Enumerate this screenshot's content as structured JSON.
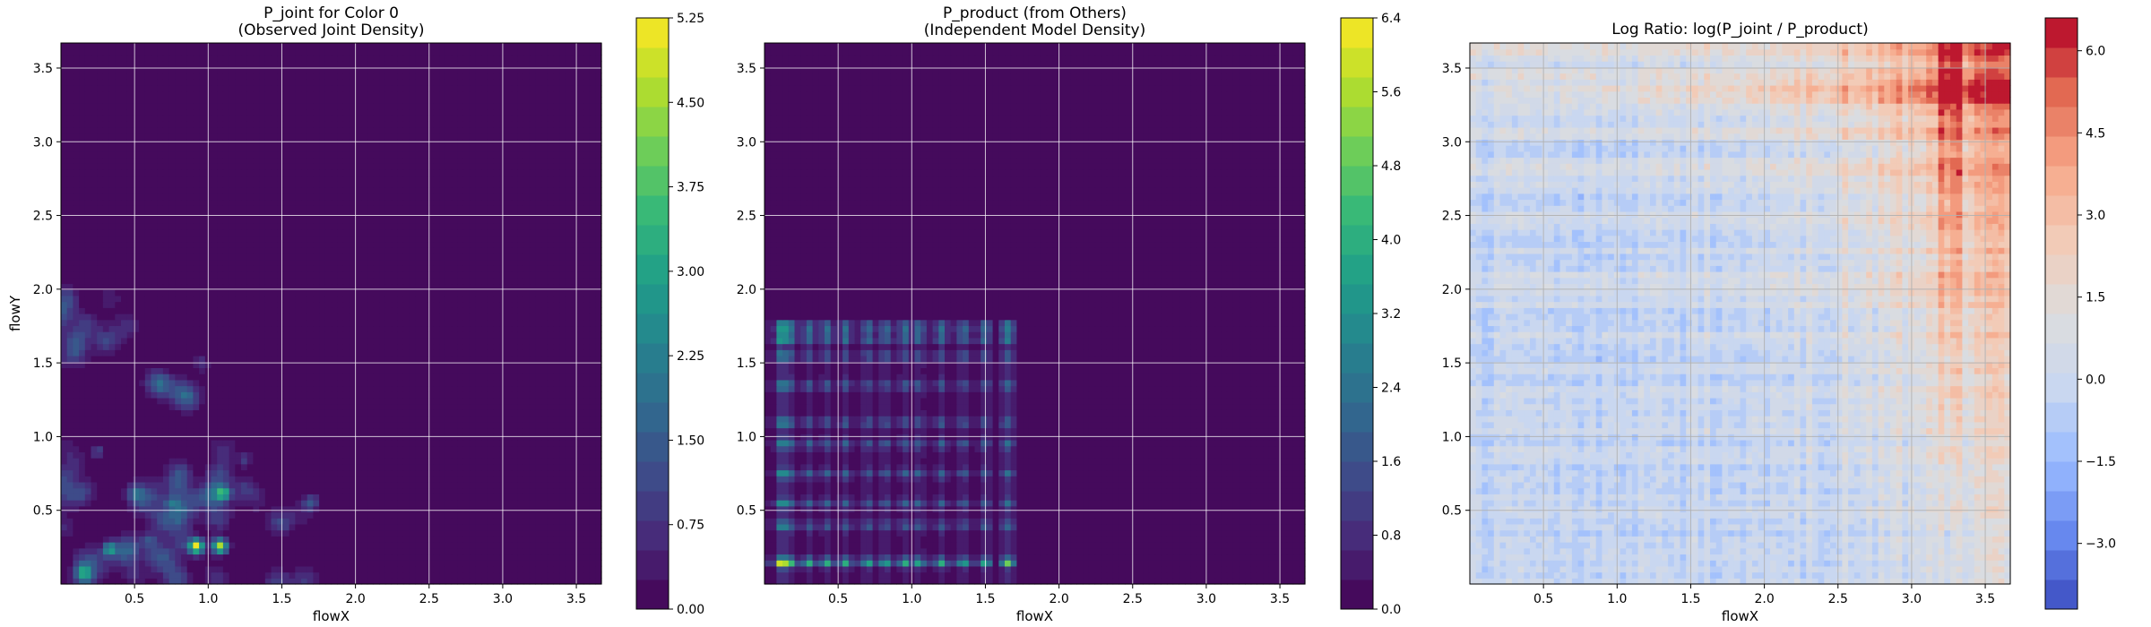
{
  "chart_data": [
    {
      "type": "heatmap",
      "title": "P_joint for Color 0\n(Observed Joint Density)",
      "xlabel": "flowX",
      "ylabel": "flowY",
      "xlim": [
        0.0,
        3.67
      ],
      "ylim": [
        0.0,
        3.67
      ],
      "xticks": [
        0.5,
        1.0,
        1.5,
        2.0,
        2.5,
        3.0,
        3.5
      ],
      "yticks": [
        0.5,
        1.0,
        1.5,
        2.0,
        2.5,
        3.0,
        3.5
      ],
      "grid": true,
      "colormap": "viridis",
      "colorbar": {
        "min": 0.0,
        "max": 5.25,
        "ticks": [
          "0.00",
          "0.75",
          "1.50",
          "2.25",
          "3.00",
          "3.75",
          "4.50",
          "5.25"
        ]
      },
      "hotspots": [
        {
          "x": 0.92,
          "y": 0.26,
          "value": 5.0
        },
        {
          "x": 1.08,
          "y": 0.26,
          "value": 4.6
        },
        {
          "x": 1.1,
          "y": 0.62,
          "value": 2.6
        },
        {
          "x": 0.33,
          "y": 0.24,
          "value": 2.4
        },
        {
          "x": 0.15,
          "y": 0.08,
          "value": 2.0
        },
        {
          "x": 1.7,
          "y": 0.56,
          "value": 1.5
        },
        {
          "x": 0.5,
          "y": 0.62,
          "value": 1.2
        },
        {
          "x": 0.75,
          "y": 0.55,
          "value": 1.2
        },
        {
          "x": 0.25,
          "y": 0.9,
          "value": 1.0
        },
        {
          "x": 0.95,
          "y": 1.5,
          "value": 0.8
        },
        {
          "x": 0.6,
          "y": 0.3,
          "value": 1.3
        },
        {
          "x": 1.25,
          "y": 0.85,
          "value": 0.9
        }
      ]
    },
    {
      "type": "heatmap",
      "title": "P_product (from Others)\n(Independent Model Density)",
      "xlabel": "flowX",
      "ylabel": "",
      "xlim": [
        0.0,
        3.67
      ],
      "ylim": [
        0.0,
        3.67
      ],
      "xticks": [
        0.5,
        1.0,
        1.5,
        2.0,
        2.5,
        3.0,
        3.5
      ],
      "yticks": [
        0.5,
        1.0,
        1.5,
        2.0,
        2.5,
        3.0,
        3.5
      ],
      "grid": true,
      "colormap": "viridis",
      "colorbar": {
        "min": 0.0,
        "max": 6.4,
        "ticks": [
          "0.0",
          "0.8",
          "1.6",
          "2.4",
          "3.2",
          "4.0",
          "4.8",
          "5.6",
          "6.4"
        ]
      },
      "marginal_x": [
        0.12,
        0.18,
        0.3,
        0.42,
        0.55,
        0.7,
        0.82,
        0.95,
        1.05,
        1.2,
        1.35,
        1.5,
        1.65
      ],
      "marginal_y": [
        0.15,
        0.4,
        0.55,
        0.75,
        0.95,
        1.1,
        1.35,
        1.55,
        1.67,
        1.75
      ],
      "peak": {
        "x": 0.15,
        "y": 0.15,
        "value": 6.2
      }
    },
    {
      "type": "heatmap",
      "title": "Log Ratio: log(P_joint / P_product)",
      "xlabel": "flowX",
      "ylabel": "",
      "xlim": [
        0.0,
        3.67
      ],
      "ylim": [
        0.0,
        3.67
      ],
      "xticks": [
        0.5,
        1.0,
        1.5,
        2.0,
        2.5,
        3.0,
        3.5
      ],
      "yticks": [
        0.5,
        1.0,
        1.5,
        2.0,
        2.5,
        3.0,
        3.5
      ],
      "grid": true,
      "colormap": "coolwarm",
      "colorbar": {
        "min": -4.2,
        "max": 6.6,
        "ticks": [
          "−3.0",
          "−1.5",
          "0.0",
          "1.5",
          "3.0",
          "4.5",
          "6.0"
        ],
        "tick_values": [
          -3.0,
          -1.5,
          0.0,
          1.5,
          3.0,
          4.5,
          6.0
        ]
      }
    }
  ],
  "colors": {
    "viridis": [
      "#440154",
      "#482878",
      "#3e4a89",
      "#31688e",
      "#26828e",
      "#1f9e89",
      "#35b779",
      "#6ece58",
      "#b5de2b",
      "#fde725"
    ],
    "coolwarm": [
      "#3b4cc0",
      "#6788ee",
      "#9abbff",
      "#c9d7f0",
      "#dddddd",
      "#f2cbb7",
      "#f7a889",
      "#e26952",
      "#b40426"
    ]
  }
}
